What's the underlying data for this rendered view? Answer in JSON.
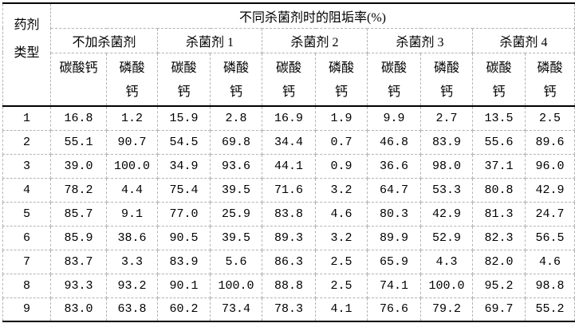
{
  "table": {
    "corner_header": "药剂\n类型",
    "main_header": "不同杀菌剂时的阻垢率(%)",
    "group_labels": [
      "不加杀菌剂",
      "杀菌剂 1",
      "杀菌剂 2",
      "杀菌剂 3",
      "杀菌剂 4"
    ],
    "sub_headers": [
      "碳酸钙",
      "磷酸\n钙",
      "碳酸\n钙",
      "磷酸\n钙",
      "碳酸\n钙",
      "磷酸\n钙",
      "碳酸\n钙",
      "磷酸\n钙",
      "碳酸\n钙",
      "磷酸\n钙"
    ],
    "rows": [
      {
        "label": "1",
        "values": [
          "16.8",
          "1.2",
          "15.9",
          "2.8",
          "16.9",
          "1.9",
          "9.9",
          "2.7",
          "13.5",
          "2.5"
        ]
      },
      {
        "label": "2",
        "values": [
          "55.1",
          "90.7",
          "54.5",
          "69.8",
          "34.4",
          "0.7",
          "46.8",
          "83.9",
          "55.6",
          "89.6"
        ]
      },
      {
        "label": "3",
        "values": [
          "39.0",
          "100.0",
          "34.9",
          "93.6",
          "44.1",
          "0.9",
          "36.6",
          "98.0",
          "37.1",
          "96.0"
        ]
      },
      {
        "label": "4",
        "values": [
          "78.2",
          "4.4",
          "75.4",
          "39.5",
          "71.6",
          "3.2",
          "64.7",
          "53.3",
          "80.8",
          "42.9"
        ]
      },
      {
        "label": "5",
        "values": [
          "85.7",
          "9.1",
          "77.0",
          "25.9",
          "83.8",
          "4.6",
          "80.3",
          "42.9",
          "81.3",
          "24.7"
        ]
      },
      {
        "label": "6",
        "values": [
          "85.9",
          "38.6",
          "90.5",
          "39.5",
          "89.3",
          "3.2",
          "89.9",
          "52.9",
          "82.3",
          "56.5"
        ]
      },
      {
        "label": "7",
        "values": [
          "83.7",
          "3.3",
          "83.9",
          "5.6",
          "86.3",
          "2.5",
          "65.9",
          "4.3",
          "82.0",
          "4.6"
        ]
      },
      {
        "label": "8",
        "values": [
          "93.3",
          "93.2",
          "90.1",
          "100.0",
          "88.8",
          "2.5",
          "74.1",
          "100.0",
          "95.2",
          "98.8"
        ]
      },
      {
        "label": "9",
        "values": [
          "83.0",
          "63.8",
          "60.2",
          "73.4",
          "78.3",
          "4.1",
          "76.6",
          "79.2",
          "69.7",
          "55.2"
        ]
      }
    ]
  }
}
